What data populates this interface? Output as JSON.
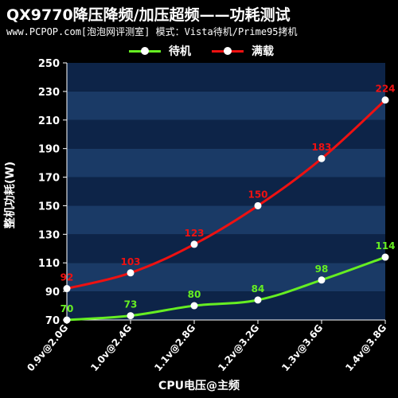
{
  "header": {
    "title": "QX9770降压降频/加压超频——功耗测试",
    "subtitle": "www.PCPOP.com[泡泡网评测室] 模式：Vista待机/Prime95拷机"
  },
  "chart_data": {
    "type": "line",
    "title": "QX9770降压降频/加压超频——功耗测试",
    "subtitle": "www.PCPOP.com[泡泡网评测室] 模式：Vista待机/Prime95拷机",
    "xlabel": "CPU电压@主频",
    "ylabel": "整机功耗(W)",
    "categories": [
      "0.9v@2.0G",
      "1.0v@2.4G",
      "1.1v@2.8G",
      "1.2v@3.2G",
      "1.3v@3.6G",
      "1.4v@3.8G"
    ],
    "ylim": [
      70,
      250
    ],
    "yticks": [
      70,
      90,
      110,
      130,
      150,
      170,
      190,
      210,
      230,
      250
    ],
    "grid": true,
    "legend_position": "top",
    "background_colors": [
      "#0d2448",
      "#1a3a66"
    ],
    "series": [
      {
        "name": "待机",
        "color": "#66ee22",
        "values": [
          70,
          73,
          80,
          84,
          98,
          114
        ]
      },
      {
        "name": "满载",
        "color": "#ee1111",
        "values": [
          92,
          103,
          123,
          150,
          183,
          224
        ]
      }
    ]
  }
}
